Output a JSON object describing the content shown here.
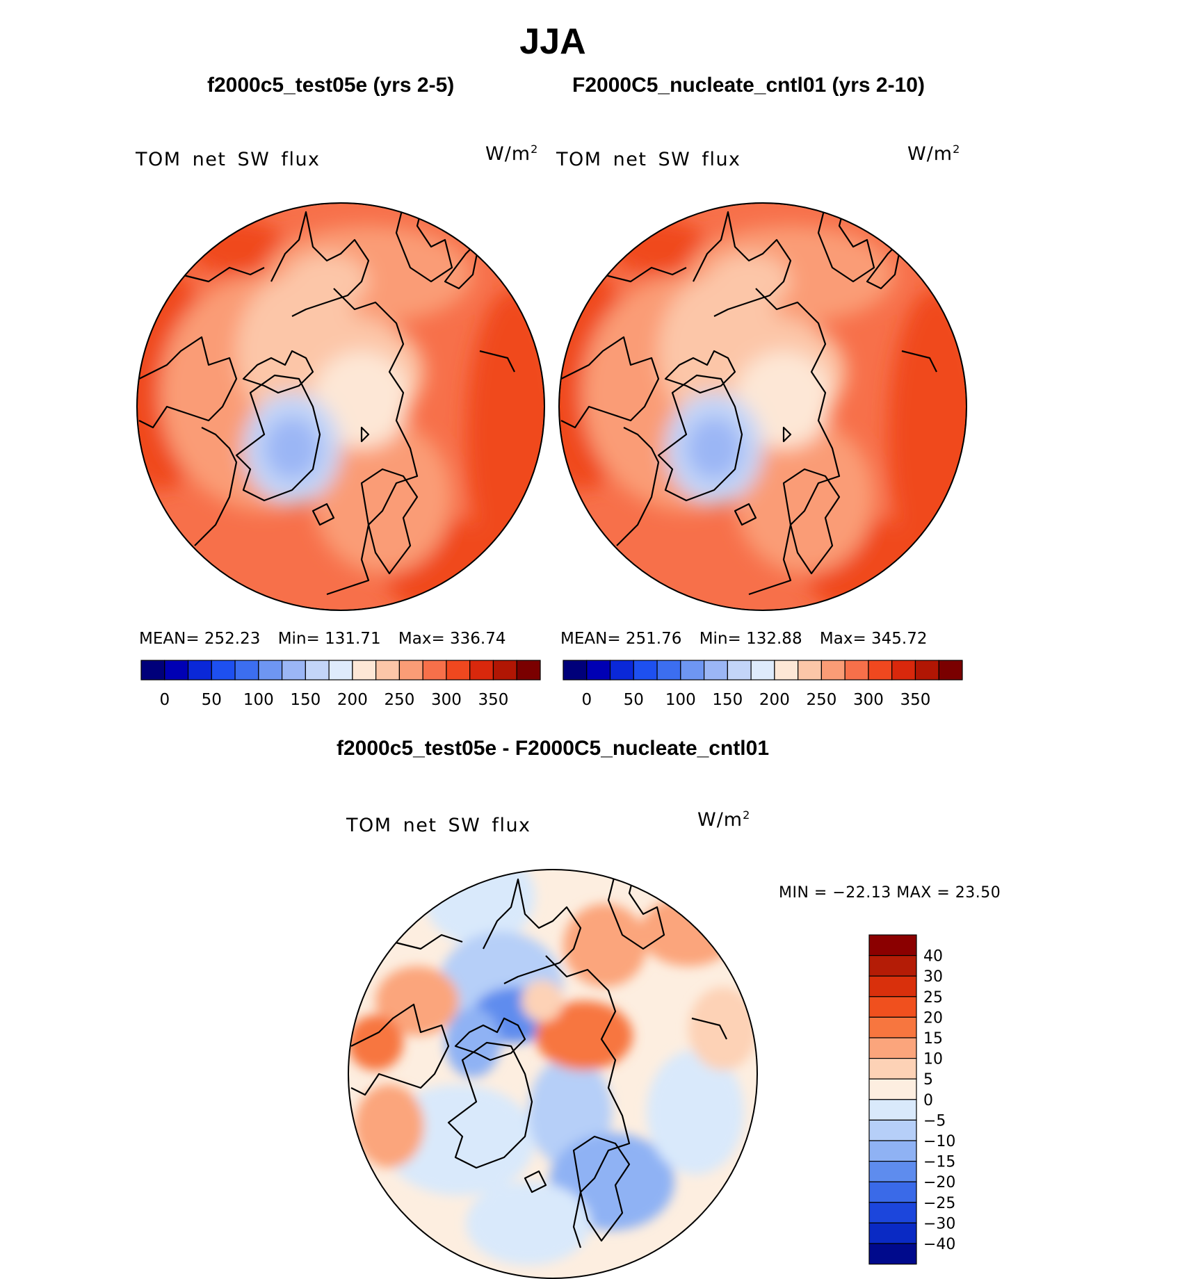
{
  "figure": {
    "season": "JJA",
    "variable": "TOM net SW flux",
    "units_base": "W/m",
    "units_exp": "2"
  },
  "panels": [
    {
      "title": "f2000c5_test05e (yrs 2-5)",
      "stats": {
        "mean": "MEAN= 252.23",
        "min": "Min= 131.71",
        "max": "Max= 336.74"
      }
    },
    {
      "title": "F2000C5_nucleate_cntl01 (yrs 2-10)",
      "stats": {
        "mean": "MEAN= 251.76",
        "min": "Min= 132.88",
        "max": "Max= 345.72"
      }
    }
  ],
  "difference": {
    "title": "f2000c5_test05e - F2000C5_nucleate_cntl01",
    "minmax": "MIN = −22.13 MAX =   23.50"
  },
  "chart_data": [
    {
      "type": "heatmap",
      "title": "f2000c5_test05e (yrs 2-5)",
      "projection": "polar stereographic (north)",
      "variable": "TOM net SW flux",
      "units": "W/m2",
      "mean": 252.23,
      "min": 131.71,
      "max": 336.74,
      "colorbar": {
        "orientation": "horizontal",
        "levels": [
          0,
          25,
          50,
          75,
          100,
          125,
          150,
          175,
          200,
          225,
          250,
          275,
          300,
          325,
          350
        ],
        "tick_labels": [
          "0",
          "50",
          "100",
          "150",
          "200",
          "250",
          "300",
          "350"
        ],
        "colors": [
          "#00007a",
          "#0000b4",
          "#0a28d8",
          "#1e50f0",
          "#3c6ef0",
          "#6e96f2",
          "#9bb6f5",
          "#c3d5f8",
          "#deebfc",
          "#fde7d6",
          "#fcc6a8",
          "#fa9c76",
          "#f7704a",
          "#f0481f",
          "#d9280c",
          "#b11604",
          "#7a0000"
        ]
      }
    },
    {
      "type": "heatmap",
      "title": "F2000C5_nucleate_cntl01 (yrs 2-10)",
      "projection": "polar stereographic (north)",
      "variable": "TOM net SW flux",
      "units": "W/m2",
      "mean": 251.76,
      "min": 132.88,
      "max": 345.72,
      "colorbar": {
        "orientation": "horizontal",
        "levels": [
          0,
          25,
          50,
          75,
          100,
          125,
          150,
          175,
          200,
          225,
          250,
          275,
          300,
          325,
          350
        ],
        "tick_labels": [
          "0",
          "50",
          "100",
          "150",
          "200",
          "250",
          "300",
          "350"
        ],
        "colors": [
          "#00007a",
          "#0000b4",
          "#0a28d8",
          "#1e50f0",
          "#3c6ef0",
          "#6e96f2",
          "#9bb6f5",
          "#c3d5f8",
          "#deebfc",
          "#fde7d6",
          "#fcc6a8",
          "#fa9c76",
          "#f7704a",
          "#f0481f",
          "#d9280c",
          "#b11604",
          "#7a0000"
        ]
      }
    },
    {
      "type": "heatmap",
      "title": "f2000c5_test05e - F2000C5_nucleate_cntl01",
      "projection": "polar stereographic (north)",
      "variable": "TOM net SW flux",
      "units": "W/m2",
      "min": -22.13,
      "max": 23.5,
      "colorbar": {
        "orientation": "vertical",
        "tick_labels": [
          "40",
          "30",
          "25",
          "20",
          "15",
          "10",
          "5",
          "0",
          "−5",
          "−10",
          "−15",
          "−20",
          "−25",
          "−30",
          "−40"
        ],
        "colors": [
          "#8b0000",
          "#b41c06",
          "#d9300c",
          "#f0501e",
          "#f7763f",
          "#fba57c",
          "#fdd2b6",
          "#fdeee0",
          "#d9e9fb",
          "#b6cff8",
          "#8fb2f4",
          "#5e8cee",
          "#3a6ae8",
          "#1c46dc",
          "#0a2ac4",
          "#000a8c"
        ]
      }
    }
  ]
}
